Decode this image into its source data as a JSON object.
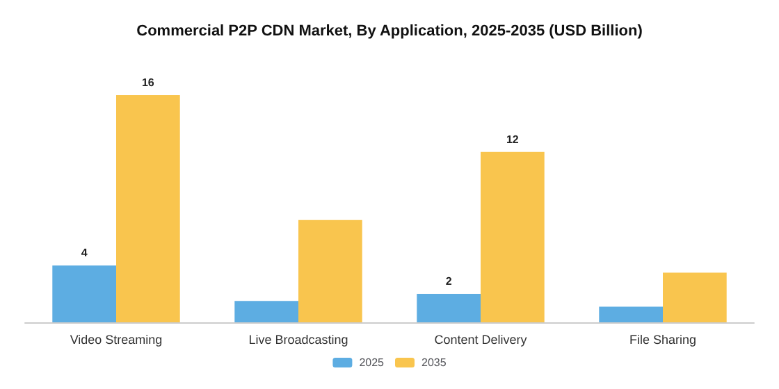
{
  "chart_data": {
    "type": "bar",
    "title": "Commercial P2P CDN Market, By Application, 2025-2035 (USD Billion)",
    "categories": [
      "Video Streaming",
      "Live Broadcasting",
      "Content Delivery",
      "File Sharing"
    ],
    "series": [
      {
        "name": "2025",
        "color": "#5dade2",
        "values": [
          4,
          1.5,
          2,
          1.1
        ],
        "value_labels": [
          "4",
          null,
          "2",
          null
        ]
      },
      {
        "name": "2035",
        "color": "#f9c54e",
        "values": [
          16,
          7.2,
          12,
          3.5
        ],
        "value_labels": [
          "16",
          null,
          "12",
          null
        ]
      }
    ],
    "legend": "bottom"
  }
}
